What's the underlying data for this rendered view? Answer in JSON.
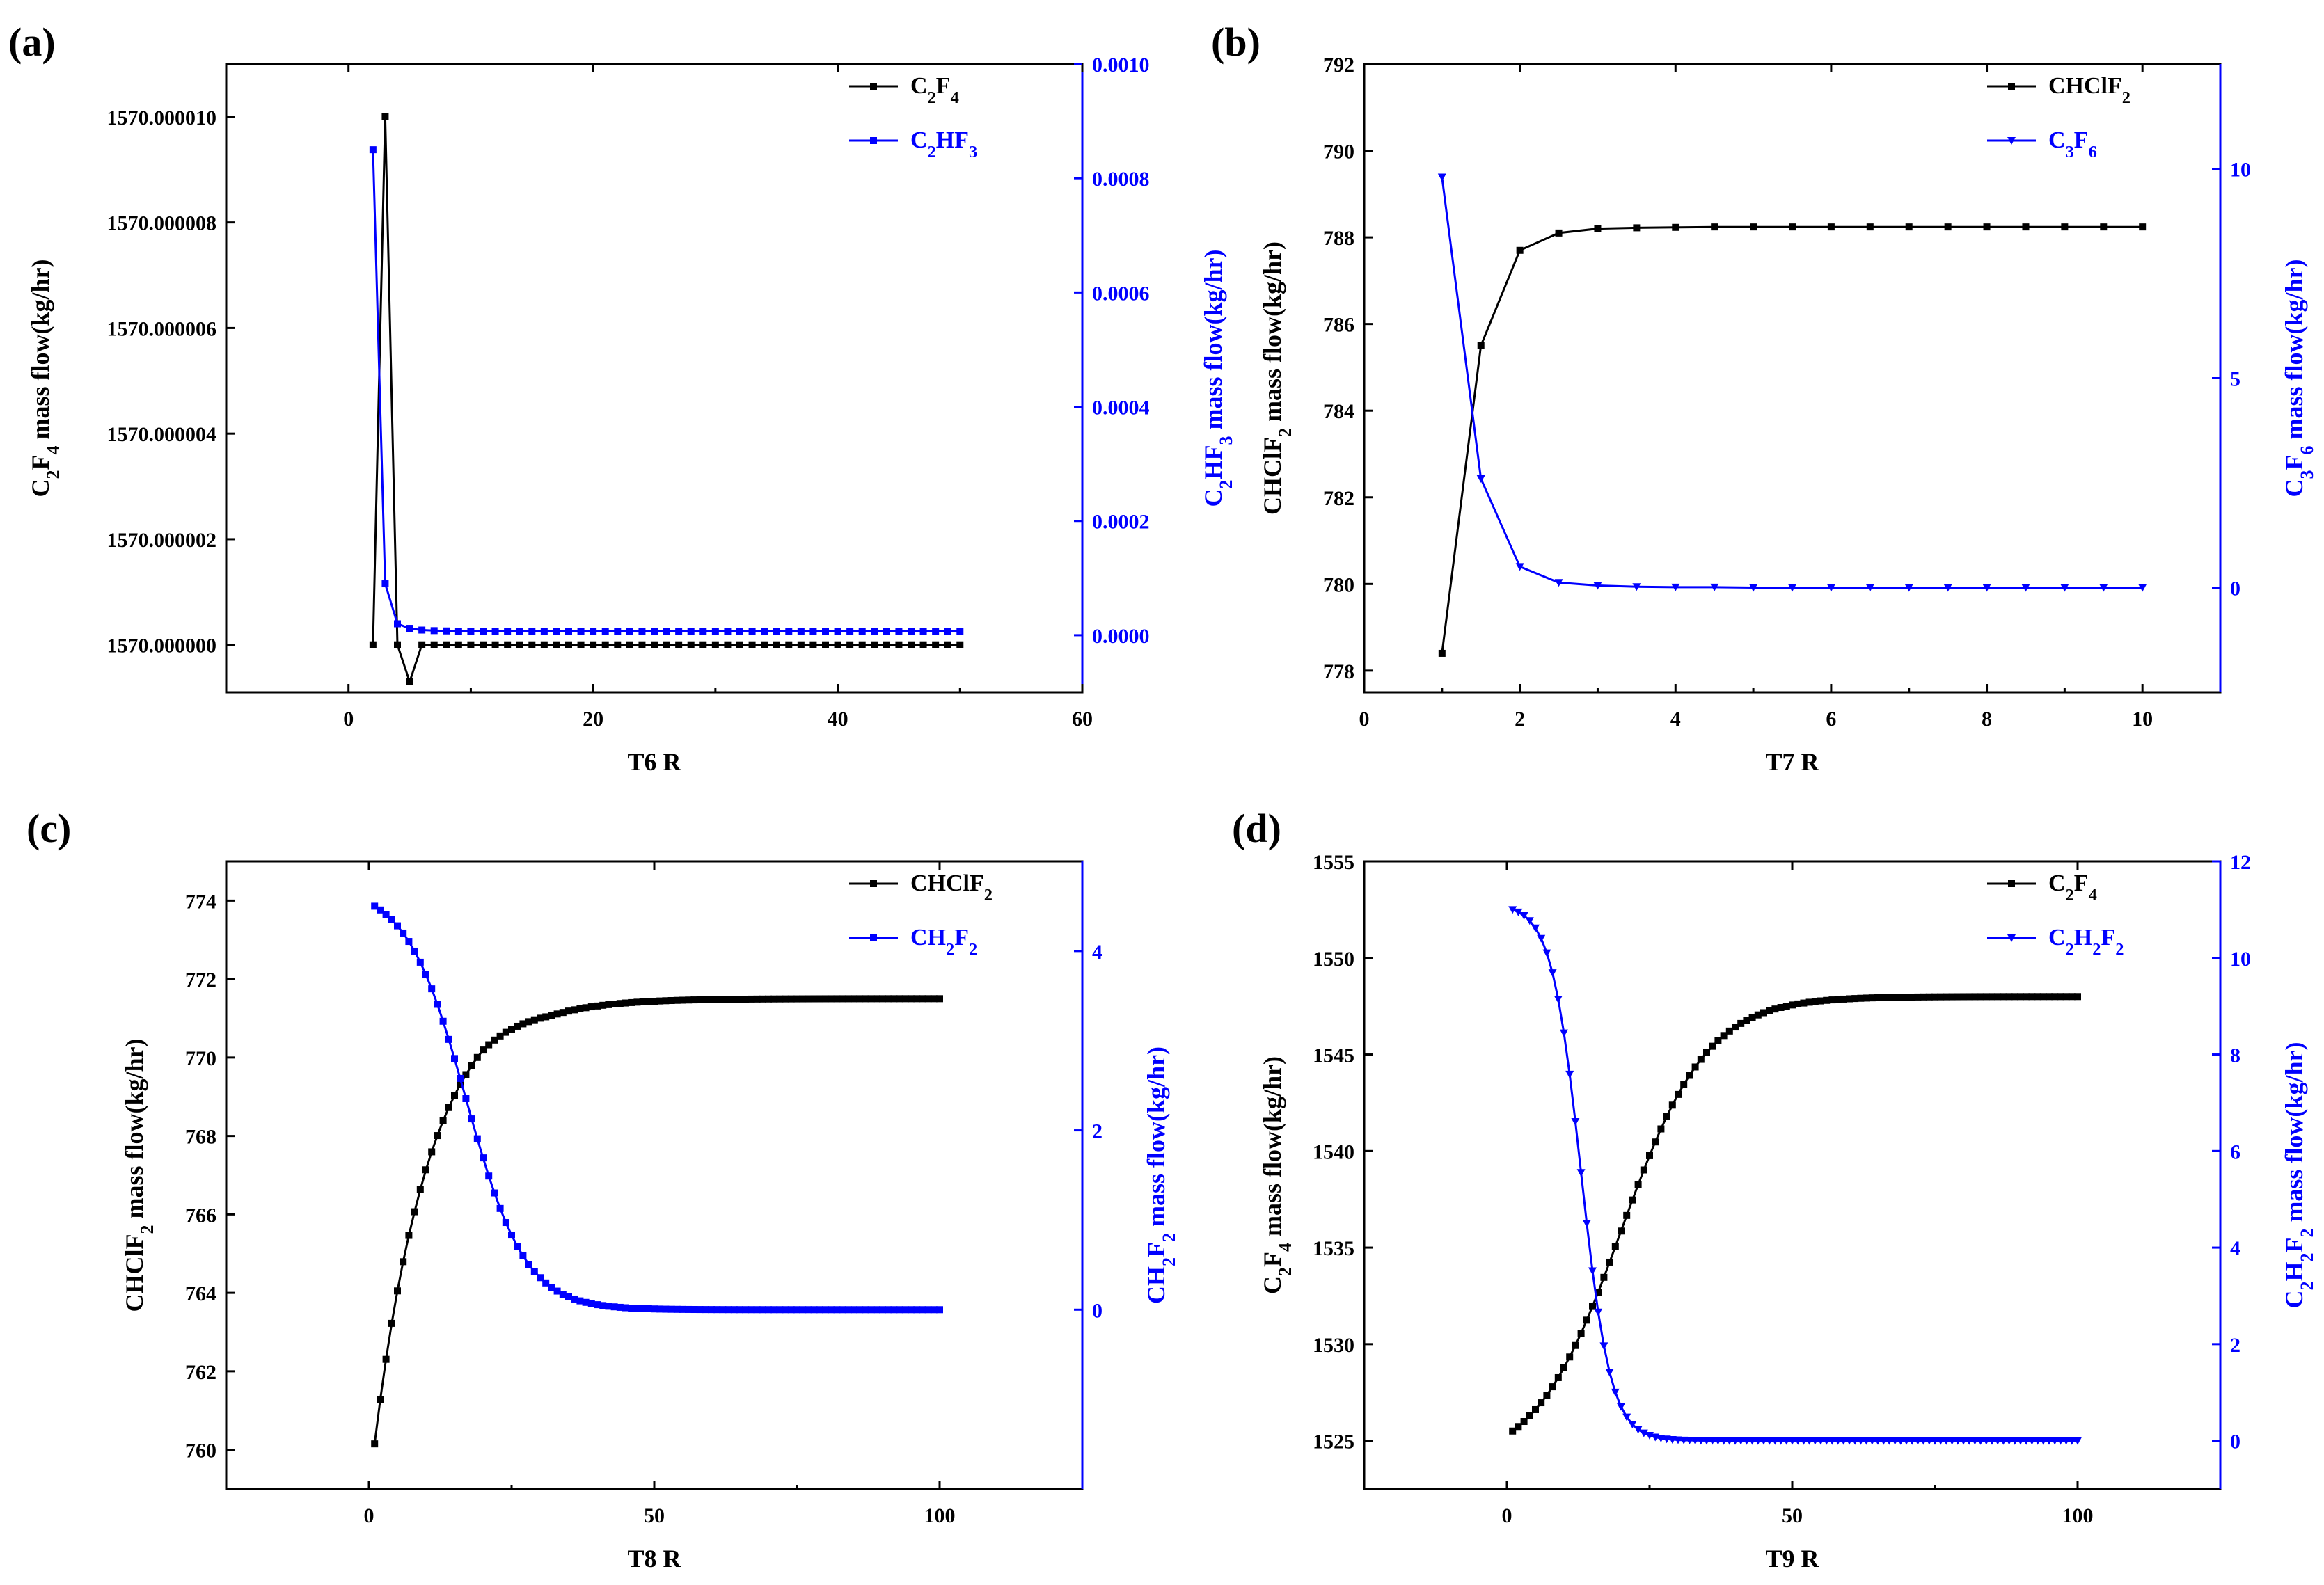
{
  "colors": {
    "primary": "#000000",
    "secondary": "#0000ff",
    "background": "#ffffff"
  },
  "chart_data": [
    {
      "panel_label": "(a)",
      "type": "line",
      "xlabel": "T6  R",
      "xlim": [
        -10,
        60
      ],
      "x_ticks": [
        "0",
        "20",
        "40",
        "60"
      ],
      "ylabel_left": {
        "base": "C",
        "parts": [
          [
            "C",
            ""
          ],
          [
            "2",
            "sub"
          ],
          [
            "F",
            ""
          ],
          [
            "4",
            "sub"
          ],
          [
            " mass flow(kg/hr)",
            ""
          ]
        ]
      },
      "ylim_left": [
        1569.9999991,
        1570.000011
      ],
      "y_ticks_left": [
        "1570.000000",
        "1570.000002",
        "1570.000004",
        "1570.000006",
        "1570.000008",
        "1570.000010"
      ],
      "ylabel_right": {
        "parts": [
          [
            "C",
            ""
          ],
          [
            "2",
            "sub"
          ],
          [
            "HF",
            ""
          ],
          [
            "3",
            "sub"
          ],
          [
            " mass flow(kg/hr)",
            ""
          ]
        ]
      },
      "ylim_right": [
        -0.0001,
        0.001
      ],
      "y_ticks_right": [
        "0.0000",
        "0.0002",
        "0.0004",
        "0.0006",
        "0.0008",
        "0.0010"
      ],
      "series": [
        {
          "name": "C2F4",
          "legend": [
            [
              "C",
              ""
            ],
            [
              "2",
              "sub"
            ],
            [
              "F",
              ""
            ],
            [
              "4",
              "sub"
            ]
          ],
          "axis": "left",
          "color": "#000000",
          "marker": "square",
          "x": [
            2,
            3,
            4,
            5,
            6,
            7,
            8,
            9,
            10,
            11,
            12,
            13,
            14,
            15,
            16,
            17,
            18,
            19,
            20,
            21,
            22,
            23,
            24,
            25,
            26,
            27,
            28,
            29,
            30,
            31,
            32,
            33,
            34,
            35,
            36,
            37,
            38,
            39,
            40,
            41,
            42,
            43,
            44,
            45,
            46,
            47,
            48,
            49,
            50
          ],
          "y": [
            1570.0,
            1570.00001,
            1570.0,
            1569.9999993,
            1570.0,
            1570.0,
            1570.0,
            1570.0,
            1570.0,
            1570.0,
            1570.0,
            1570.0,
            1570.0,
            1570.0,
            1570.0,
            1570.0,
            1570.0,
            1570.0,
            1570.0,
            1570.0,
            1570.0,
            1570.0,
            1570.0,
            1570.0,
            1570.0,
            1570.0,
            1570.0,
            1570.0,
            1570.0,
            1570.0,
            1570.0,
            1570.0,
            1570.0,
            1570.0,
            1570.0,
            1570.0,
            1570.0,
            1570.0,
            1570.0,
            1570.0,
            1570.0,
            1570.0,
            1570.0,
            1570.0,
            1570.0,
            1570.0,
            1570.0,
            1570.0,
            1570.0
          ]
        },
        {
          "name": "C2HF3",
          "legend": [
            [
              "C",
              ""
            ],
            [
              "2",
              "sub"
            ],
            [
              "HF",
              ""
            ],
            [
              "3",
              "sub"
            ]
          ],
          "axis": "right",
          "color": "#0000ff",
          "marker": "square",
          "x": [
            2,
            3,
            4,
            5,
            6,
            7,
            8,
            9,
            10,
            11,
            12,
            13,
            14,
            15,
            16,
            17,
            18,
            19,
            20,
            21,
            22,
            23,
            24,
            25,
            26,
            27,
            28,
            29,
            30,
            31,
            32,
            33,
            34,
            35,
            36,
            37,
            38,
            39,
            40,
            41,
            42,
            43,
            44,
            45,
            46,
            47,
            48,
            49,
            50
          ],
          "y": [
            0.00085,
            9e-05,
            2e-05,
            1.2e-05,
            9e-06,
            8e-06,
            7.5e-06,
            7e-06,
            7e-06,
            7e-06,
            7e-06,
            7e-06,
            7e-06,
            7e-06,
            7e-06,
            7e-06,
            7e-06,
            7e-06,
            7e-06,
            7e-06,
            7e-06,
            7e-06,
            7e-06,
            7e-06,
            7e-06,
            7e-06,
            7e-06,
            7e-06,
            7e-06,
            7e-06,
            7e-06,
            7e-06,
            7e-06,
            7e-06,
            7e-06,
            7e-06,
            7e-06,
            7e-06,
            7e-06,
            7e-06,
            7e-06,
            7e-06,
            7e-06,
            7e-06,
            7e-06,
            7e-06,
            7e-06,
            7e-06,
            7e-06
          ]
        }
      ]
    },
    {
      "panel_label": "(b)",
      "type": "line",
      "xlabel": "T7  R",
      "xlim": [
        0,
        11
      ],
      "x_ticks": [
        "0",
        "2",
        "4",
        "6",
        "8",
        "10"
      ],
      "ylabel_left": {
        "parts": [
          [
            "CHClF",
            ""
          ],
          [
            "2",
            "sub"
          ],
          [
            " mass flow(kg/hr)",
            ""
          ]
        ]
      },
      "ylim_left": [
        777.5,
        792
      ],
      "y_ticks_left": [
        "778",
        "780",
        "782",
        "784",
        "786",
        "788",
        "790",
        "792"
      ],
      "ylabel_right": {
        "parts": [
          [
            "C",
            ""
          ],
          [
            "3",
            "sub"
          ],
          [
            "F",
            ""
          ],
          [
            "6",
            "sub"
          ],
          [
            " mass flow(kg/hr)",
            ""
          ]
        ]
      },
      "ylim_right": [
        -2.5,
        12.5
      ],
      "y_ticks_right": [
        "0",
        "5",
        "10"
      ],
      "series": [
        {
          "name": "CHClF2",
          "legend": [
            [
              "CHClF",
              ""
            ],
            [
              "2",
              "sub"
            ]
          ],
          "axis": "left",
          "color": "#000000",
          "marker": "square",
          "x": [
            1,
            1.5,
            2,
            2.5,
            3,
            3.5,
            4,
            4.5,
            5,
            5.5,
            6,
            6.5,
            7,
            7.5,
            8,
            8.5,
            9,
            9.5,
            10
          ],
          "y": [
            778.4,
            785.5,
            787.7,
            788.1,
            788.2,
            788.22,
            788.23,
            788.24,
            788.24,
            788.24,
            788.24,
            788.24,
            788.24,
            788.24,
            788.24,
            788.24,
            788.24,
            788.24,
            788.24
          ]
        },
        {
          "name": "C3F6",
          "legend": [
            [
              "C",
              ""
            ],
            [
              "3",
              "sub"
            ],
            [
              "F",
              ""
            ],
            [
              "6",
              "sub"
            ]
          ],
          "axis": "right",
          "color": "#0000ff",
          "marker": "triangle-down",
          "x": [
            1,
            1.5,
            2,
            2.5,
            3,
            3.5,
            4,
            4.5,
            5,
            5.5,
            6,
            6.5,
            7,
            7.5,
            8,
            8.5,
            9,
            9.5,
            10
          ],
          "y": [
            9.8,
            2.6,
            0.5,
            0.12,
            0.05,
            0.02,
            0.01,
            0.01,
            0,
            0,
            0,
            0,
            0,
            0,
            0,
            0,
            0,
            0,
            0
          ]
        }
      ]
    },
    {
      "panel_label": "(c)",
      "type": "line",
      "xlabel": "T8  R",
      "xlim": [
        -25,
        125
      ],
      "x_ticks": [
        "0",
        "50",
        "100"
      ],
      "ylabel_left": {
        "parts": [
          [
            "CHClF",
            ""
          ],
          [
            "2",
            "sub"
          ],
          [
            " mass flow(kg/hr)",
            ""
          ]
        ]
      },
      "ylim_left": [
        759,
        775
      ],
      "y_ticks_left": [
        "760",
        "762",
        "764",
        "766",
        "768",
        "770",
        "772",
        "774"
      ],
      "ylabel_right": {
        "parts": [
          [
            "CH",
            ""
          ],
          [
            "2",
            "sub"
          ],
          [
            "F",
            ""
          ],
          [
            "2",
            "sub"
          ],
          [
            " mass flow(kg/hr)",
            ""
          ]
        ]
      },
      "ylim_right": [
        -2,
        5
      ],
      "y_ticks_right": [
        "0",
        "2",
        "4"
      ],
      "series": [
        {
          "name": "CHClF2",
          "legend": [
            [
              "CHClF",
              ""
            ],
            [
              "2",
              "sub"
            ]
          ],
          "axis": "left",
          "color": "#000000",
          "marker": "square",
          "generator": "logistic_up",
          "x_start": 1,
          "x_end": 100,
          "x_step": 1,
          "y_start": 760.15,
          "y_end": 771.5
        },
        {
          "name": "CH2F2",
          "legend": [
            [
              "CH",
              ""
            ],
            [
              "2",
              "sub"
            ],
            [
              "F",
              ""
            ],
            [
              "2",
              "sub"
            ]
          ],
          "axis": "right",
          "color": "#0000ff",
          "marker": "square",
          "generator": "sigmoid_down",
          "x_start": 1,
          "x_end": 100,
          "x_step": 1,
          "y_start": 4.5,
          "y_end": 0.0
        }
      ]
    },
    {
      "panel_label": "(d)",
      "type": "line",
      "xlabel": "T9  R",
      "xlim": [
        -25,
        125
      ],
      "x_ticks": [
        "0",
        "50",
        "100"
      ],
      "ylabel_left": {
        "parts": [
          [
            "C",
            ""
          ],
          [
            "2",
            "sub"
          ],
          [
            "F",
            ""
          ],
          [
            "4",
            "sub"
          ],
          [
            " mass flow(kg/hr)",
            ""
          ]
        ]
      },
      "ylim_left": [
        1522.5,
        1555
      ],
      "y_ticks_left": [
        "1525",
        "1530",
        "1535",
        "1540",
        "1545",
        "1550",
        "1555"
      ],
      "ylabel_right": {
        "parts": [
          [
            "C",
            ""
          ],
          [
            "2",
            "sub"
          ],
          [
            "H",
            ""
          ],
          [
            "2",
            "sub"
          ],
          [
            "F",
            ""
          ],
          [
            "2",
            "sub"
          ],
          [
            " mass flow(kg/hr)",
            ""
          ]
        ]
      },
      "ylim_right": [
        -1,
        12
      ],
      "y_ticks_right": [
        "0",
        "2",
        "4",
        "6",
        "8",
        "10",
        "12"
      ],
      "series": [
        {
          "name": "C2F4",
          "legend": [
            [
              "C",
              ""
            ],
            [
              "2",
              "sub"
            ],
            [
              "F",
              ""
            ],
            [
              "4",
              "sub"
            ]
          ],
          "axis": "left",
          "color": "#000000",
          "marker": "square",
          "generator": "rise_d",
          "x_start": 1,
          "x_end": 100,
          "x_step": 1,
          "y_start": 1525.5,
          "y_end": 1548.0
        },
        {
          "name": "C2H2F2",
          "legend": [
            [
              "C",
              ""
            ],
            [
              "2",
              "sub"
            ],
            [
              "H",
              ""
            ],
            [
              "2",
              "sub"
            ],
            [
              "F",
              ""
            ],
            [
              "2",
              "sub"
            ]
          ],
          "axis": "right",
          "color": "#0000ff",
          "marker": "triangle-down",
          "generator": "fall_d",
          "x_start": 1,
          "x_end": 100,
          "x_step": 1,
          "y_start": 11.0,
          "y_end": 0.0
        }
      ]
    }
  ]
}
